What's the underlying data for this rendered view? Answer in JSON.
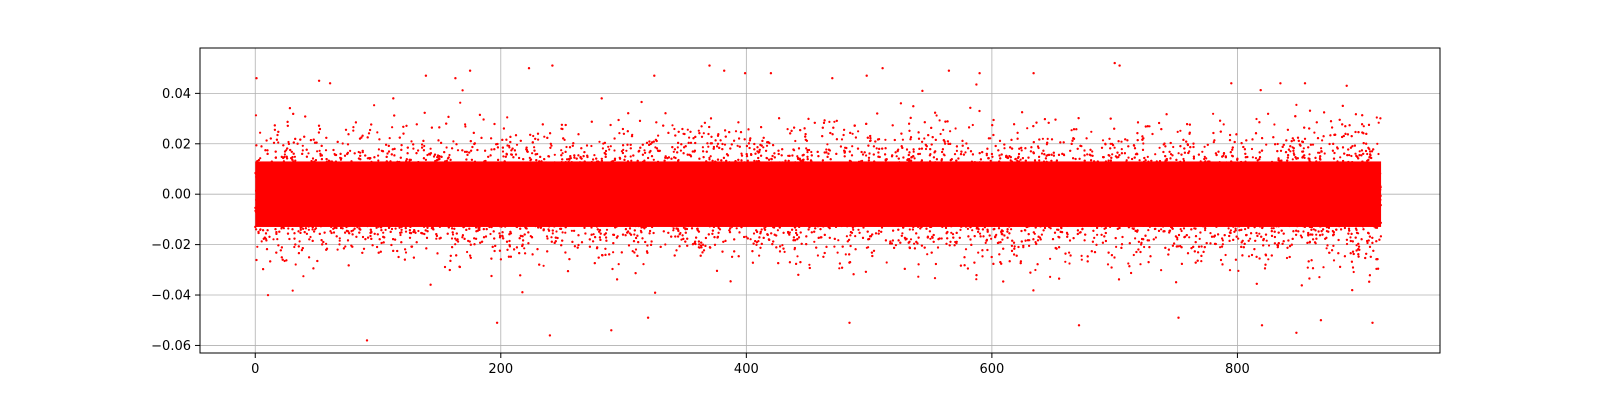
{
  "chart_data": {
    "type": "scatter",
    "title": "",
    "xlabel": "",
    "ylabel": "",
    "xlim": [
      -45,
      965
    ],
    "ylim": [
      -0.063,
      0.058
    ],
    "grid": true,
    "marker_color": "#ff0000",
    "x_ticks": [
      {
        "value": 0,
        "label": "0"
      },
      {
        "value": 200,
        "label": "200"
      },
      {
        "value": 400,
        "label": "400"
      },
      {
        "value": 600,
        "label": "600"
      },
      {
        "value": 800,
        "label": "800"
      }
    ],
    "y_ticks": [
      {
        "value": 0.04,
        "label": "0.04"
      },
      {
        "value": 0.02,
        "label": "0.02"
      },
      {
        "value": 0.0,
        "label": "0.00"
      },
      {
        "value": -0.02,
        "label": "−0.02"
      },
      {
        "value": -0.04,
        "label": "−0.04"
      },
      {
        "value": -0.06,
        "label": "−0.06"
      }
    ],
    "series": [
      {
        "x_range": [
          0,
          917
        ],
        "core_range": [
          -0.013,
          0.013
        ],
        "typical_range": [
          -0.04,
          0.045
        ],
        "points": [
          [
            1,
            0.046
          ],
          [
            52,
            0.045
          ],
          [
            61,
            0.044
          ],
          [
            91,
            -0.058
          ],
          [
            139,
            0.047
          ],
          [
            163,
            0.046
          ],
          [
            175,
            0.049
          ],
          [
            197,
            -0.051
          ],
          [
            223,
            0.05
          ],
          [
            242,
            0.051
          ],
          [
            240,
            -0.056
          ],
          [
            290,
            -0.054
          ],
          [
            320,
            -0.049
          ],
          [
            325,
            0.047
          ],
          [
            370,
            0.051
          ],
          [
            382,
            0.049
          ],
          [
            399,
            0.048
          ],
          [
            420,
            0.048
          ],
          [
            470,
            0.046
          ],
          [
            484,
            -0.051
          ],
          [
            498,
            0.047
          ],
          [
            511,
            0.05
          ],
          [
            565,
            0.049
          ],
          [
            590,
            0.048
          ],
          [
            634,
            0.048
          ],
          [
            671,
            -0.052
          ],
          [
            700,
            0.052
          ],
          [
            704,
            0.051
          ],
          [
            752,
            -0.049
          ],
          [
            795,
            0.044
          ],
          [
            835,
            0.044
          ],
          [
            848,
            -0.055
          ],
          [
            855,
            0.044
          ],
          [
            868,
            -0.05
          ],
          [
            889,
            0.043
          ],
          [
            910,
            -0.051
          ],
          [
            820,
            -0.052
          ]
        ]
      }
    ]
  }
}
